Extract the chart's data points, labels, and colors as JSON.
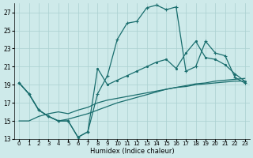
{
  "xlabel": "Humidex (Indice chaleur)",
  "background_color": "#ceeaea",
  "grid_color": "#aad0d0",
  "line_color": "#1a6e6e",
  "xlim": [
    -0.5,
    23.5
  ],
  "ylim": [
    13,
    28
  ],
  "xticks": [
    0,
    1,
    2,
    3,
    4,
    5,
    6,
    7,
    8,
    9,
    10,
    11,
    12,
    13,
    14,
    15,
    16,
    17,
    18,
    19,
    20,
    21,
    22,
    23
  ],
  "yticks": [
    13,
    15,
    17,
    19,
    21,
    23,
    25,
    27
  ],
  "s1_y": [
    19.2,
    18.0,
    16.2,
    15.5,
    15.0,
    15.2,
    15.5,
    15.8,
    16.2,
    16.6,
    17.0,
    17.3,
    17.6,
    17.9,
    18.2,
    18.5,
    18.7,
    18.9,
    19.1,
    19.2,
    19.4,
    19.5,
    19.6,
    19.7
  ],
  "s2_y": [
    19.2,
    18.0,
    16.2,
    15.5,
    15.0,
    15.0,
    13.2,
    13.8,
    18.0,
    20.0,
    24.0,
    25.8,
    26.0,
    27.5,
    27.8,
    27.3,
    27.6,
    20.5,
    21.0,
    23.8,
    22.5,
    22.2,
    19.8,
    19.2
  ],
  "s3_y": [
    19.2,
    18.0,
    16.2,
    15.5,
    15.0,
    15.0,
    13.2,
    13.8,
    20.8,
    19.0,
    19.5,
    20.0,
    20.5,
    21.0,
    21.5,
    21.8,
    20.8,
    22.5,
    23.8,
    22.0,
    21.8,
    21.2,
    20.2,
    19.4
  ],
  "s4_y": [
    15.0,
    15.0,
    15.5,
    15.8,
    16.0,
    15.8,
    16.2,
    16.5,
    17.0,
    17.3,
    17.5,
    17.7,
    17.9,
    18.1,
    18.3,
    18.5,
    18.7,
    18.8,
    19.0,
    19.1,
    19.2,
    19.3,
    19.4,
    19.4
  ]
}
